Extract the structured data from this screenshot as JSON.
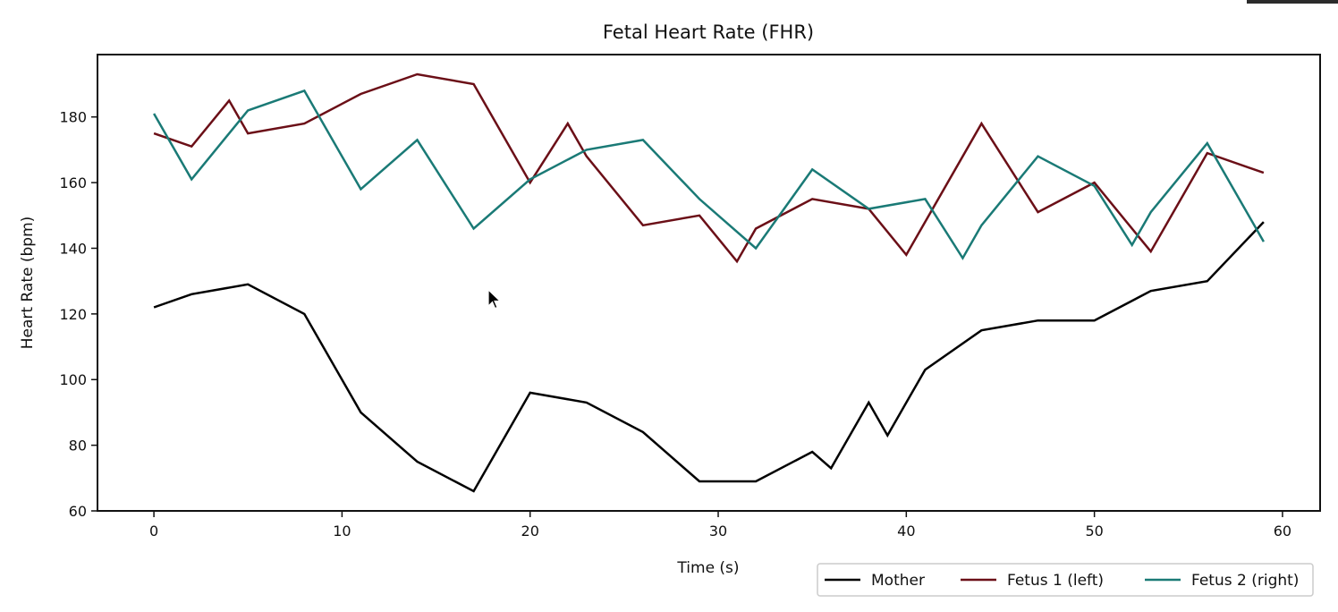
{
  "chart_data": {
    "type": "line",
    "title": "Fetal Heart Rate (FHR)",
    "xlabel": "Time (s)",
    "ylabel": "Heart Rate (bpm)",
    "xlim": [
      -3,
      62
    ],
    "ylim": [
      60,
      199
    ],
    "xticks": [
      0,
      10,
      20,
      30,
      40,
      50,
      60
    ],
    "yticks": [
      60,
      80,
      100,
      120,
      140,
      160,
      180
    ],
    "grid": false,
    "legend": "bottom-right, outside below plot",
    "series": [
      {
        "name": "Mother",
        "color": "#000000",
        "x": [
          0,
          2,
          5,
          8,
          11,
          14,
          17,
          20,
          23,
          26,
          29,
          32,
          35,
          36,
          38,
          39,
          41,
          44,
          47,
          50,
          53,
          56,
          59
        ],
        "y": [
          122,
          126,
          129,
          120,
          90,
          75,
          66,
          96,
          93,
          84,
          69,
          69,
          78,
          73,
          93,
          83,
          103,
          115,
          118,
          118,
          127,
          130,
          148
        ]
      },
      {
        "name": "Fetus 1 (left)",
        "color": "#6b0f17",
        "x": [
          0,
          2,
          4,
          5,
          8,
          11,
          14,
          17,
          20,
          22,
          23,
          26,
          29,
          31,
          32,
          35,
          38,
          40,
          44,
          47,
          50,
          53,
          56,
          59
        ],
        "y": [
          175,
          171,
          185,
          175,
          178,
          187,
          193,
          190,
          160,
          178,
          168,
          147,
          150,
          136,
          146,
          155,
          152,
          138,
          178,
          151,
          160,
          139,
          169,
          163
        ]
      },
      {
        "name": "Fetus 2 (right)",
        "color": "#1a7a76",
        "x": [
          0,
          2,
          5,
          8,
          11,
          14,
          17,
          20,
          23,
          26,
          29,
          32,
          35,
          38,
          41,
          43,
          44,
          47,
          50,
          52,
          53,
          56,
          59
        ],
        "y": [
          181,
          161,
          182,
          188,
          158,
          173,
          146,
          161,
          170,
          173,
          155,
          140,
          164,
          152,
          155,
          137,
          147,
          168,
          159,
          141,
          151,
          172,
          142
        ]
      }
    ]
  }
}
